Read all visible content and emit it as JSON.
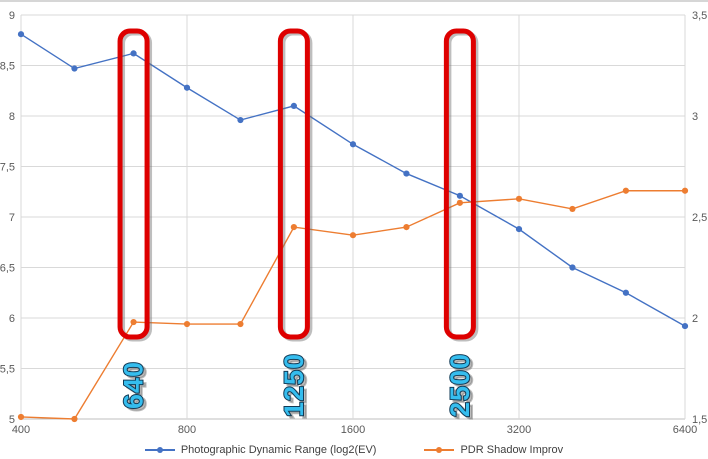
{
  "chart_data": {
    "type": "line",
    "title": "",
    "x_scale": "log2",
    "categories": [
      400,
      500,
      640,
      800,
      1000,
      1250,
      1600,
      2000,
      2500,
      3200,
      4000,
      5000,
      6400
    ],
    "x_axis": {
      "tick_values": [
        400,
        800,
        1600,
        3200,
        6400
      ],
      "tick_labels": [
        "400",
        "800",
        "1600",
        "3200",
        "6400"
      ]
    },
    "left_axis": {
      "min": 5,
      "max": 9,
      "tick_values": [
        9,
        8.5,
        8,
        7.5,
        7,
        6.5,
        6,
        5.5,
        5
      ],
      "tick_labels": [
        "9",
        "8,5",
        "8",
        "7,5",
        "7",
        "6,5",
        "6",
        "5,5",
        "5"
      ]
    },
    "right_axis": {
      "min": 1.5,
      "max": 3.5,
      "tick_values": [
        3.5,
        3,
        2.5,
        2,
        1.5
      ],
      "tick_labels": [
        "3,5",
        "3",
        "2,5",
        "2",
        "1,5"
      ]
    },
    "series": [
      {
        "name": "Photographic Dynamic Range (log2(EV)",
        "axis": "left",
        "color": "#4472C4",
        "values": [
          8.81,
          8.47,
          8.62,
          8.28,
          7.96,
          8.1,
          7.72,
          7.43,
          7.21,
          6.88,
          6.5,
          6.25,
          5.92
        ]
      },
      {
        "name": "PDR Shadow Improv",
        "axis": "right",
        "color": "#ED7D31",
        "values": [
          1.51,
          1.5,
          1.98,
          1.97,
          1.97,
          2.45,
          2.41,
          2.45,
          2.57,
          2.59,
          2.54,
          2.63,
          2.63
        ]
      }
    ],
    "highlights": [
      {
        "iso": 640,
        "label": "640"
      },
      {
        "iso": 1250,
        "label": "1250"
      },
      {
        "iso": 2500,
        "label": "2500"
      }
    ],
    "highlight_style": {
      "box_color": "#DE0000",
      "label_fill": "#35BDEE",
      "label_outline": "#123A55",
      "shadow_color": "rgba(110,110,110,0.45)"
    },
    "grid": true,
    "grid_color": "#D9D9D9",
    "axis_text_color": "#595959",
    "legend_position": "bottom"
  }
}
